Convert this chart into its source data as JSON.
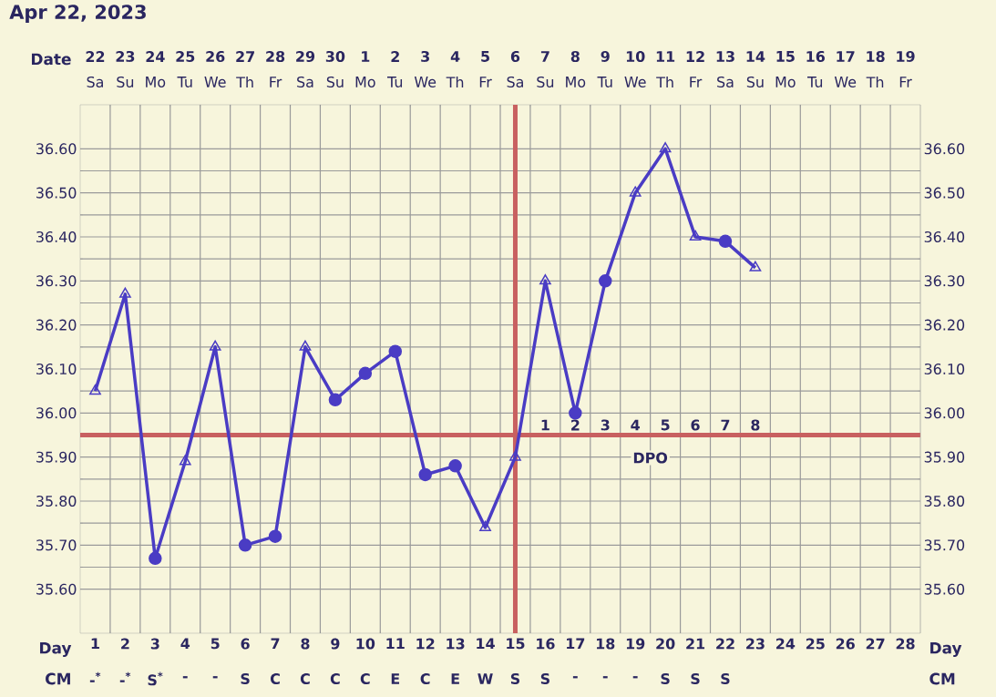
{
  "chart_data": {
    "type": "line",
    "title": "Apr 22, 2023",
    "xlabel": "Day",
    "categories": [
      "1",
      "2",
      "3",
      "4",
      "5",
      "6",
      "7",
      "8",
      "9",
      "10",
      "11",
      "12",
      "13",
      "14",
      "15",
      "16",
      "17",
      "18",
      "19",
      "20",
      "21",
      "22",
      "23",
      "24",
      "25",
      "26",
      "27",
      "28"
    ],
    "ylim": [
      35.5,
      36.7
    ],
    "yticks": [
      {
        "value": 35.6,
        "label": "35.60"
      },
      {
        "value": 35.7,
        "label": "35.70"
      },
      {
        "value": 35.8,
        "label": "35.80"
      },
      {
        "value": 35.9,
        "label": "35.90"
      },
      {
        "value": 36.0,
        "label": "36.00"
      },
      {
        "value": 36.1,
        "label": "36.10"
      },
      {
        "value": 36.2,
        "label": "36.20"
      },
      {
        "value": 36.3,
        "label": "36.30"
      },
      {
        "value": 36.4,
        "label": "36.40"
      },
      {
        "value": 36.5,
        "label": "36.50"
      },
      {
        "value": 36.6,
        "label": "36.60"
      }
    ],
    "y2lim": [
      35.5,
      36.7
    ],
    "y2ticks": [
      {
        "value": 35.6,
        "label": "35.60"
      },
      {
        "value": 35.7,
        "label": "35.70"
      },
      {
        "value": 35.8,
        "label": "35.80"
      },
      {
        "value": 35.9,
        "label": "35.90"
      },
      {
        "value": 36.0,
        "label": "36.00"
      },
      {
        "value": 36.1,
        "label": "36.10"
      },
      {
        "value": 36.2,
        "label": "36.20"
      },
      {
        "value": 36.3,
        "label": "36.30"
      },
      {
        "value": 36.4,
        "label": "36.40"
      },
      {
        "value": 36.5,
        "label": "36.50"
      },
      {
        "value": 36.6,
        "label": "36.60"
      }
    ],
    "grid": true,
    "series": [
      {
        "type": "line",
        "color": "#4a3cc4",
        "marker": "none",
        "values": [
          36.05,
          36.27,
          35.67,
          35.89,
          36.15,
          35.7,
          35.72,
          36.15,
          36.03,
          36.09,
          36.14,
          35.86,
          35.88,
          35.74,
          35.9,
          36.3,
          36.0,
          36.3,
          36.5,
          36.6,
          36.4,
          36.39,
          36.33,
          null,
          null,
          null,
          null,
          null
        ]
      },
      {
        "type": "scatter",
        "color": "#4a3cc4",
        "marker": "circle",
        "x": [
          "3",
          "6",
          "7",
          "9",
          "10",
          "11",
          "12",
          "13",
          "17",
          "18",
          "22"
        ],
        "values": [
          35.67,
          35.7,
          35.72,
          36.03,
          36.09,
          36.14,
          35.86,
          35.88,
          36.0,
          36.3,
          36.39
        ]
      },
      {
        "type": "scatter",
        "color": "#4a3cc4",
        "marker": "triangle",
        "x": [
          "1",
          "2",
          "4",
          "5",
          "8",
          "14",
          "15",
          "16",
          "19",
          "20",
          "21",
          "23"
        ],
        "values": [
          36.05,
          36.27,
          35.89,
          36.15,
          36.15,
          35.74,
          35.9,
          36.3,
          36.5,
          36.6,
          36.4,
          36.33
        ]
      }
    ],
    "ref_lines": [
      {
        "axis": "x",
        "value": "15",
        "color": "#c86060"
      },
      {
        "axis": "y",
        "value": 35.95,
        "color": "#c86060"
      }
    ],
    "annotations": [
      "Date",
      "22",
      "23",
      "24",
      "25",
      "26",
      "27",
      "28",
      "29",
      "30",
      "1",
      "2",
      "3",
      "4",
      "5",
      "6",
      "7",
      "8",
      "9",
      "10",
      "11",
      "12",
      "13",
      "14",
      "15",
      "16",
      "17",
      "18",
      "19",
      "Sa",
      "Su",
      "Mo",
      "Tu",
      "We",
      "Th",
      "Fr",
      "Sa",
      "Su",
      "Mo",
      "Tu",
      "We",
      "Th",
      "Fr",
      "Sa",
      "Su",
      "Mo",
      "Tu",
      "We",
      "Th",
      "Fr",
      "Sa",
      "Su",
      "Mo",
      "Tu",
      "We",
      "Th",
      "Fr",
      "CM",
      "-$^{*}$",
      "-$^{*}$",
      "S$^{*}$",
      "-",
      "-",
      "S",
      "C",
      "C",
      "C",
      "C",
      "E",
      "C",
      "E",
      "W",
      "S",
      "S",
      "-",
      "-",
      "-",
      "S",
      "S",
      "S",
      "1",
      "2",
      "3",
      "4",
      "5",
      "6",
      "7",
      "8",
      "DPO"
    ]
  }
}
